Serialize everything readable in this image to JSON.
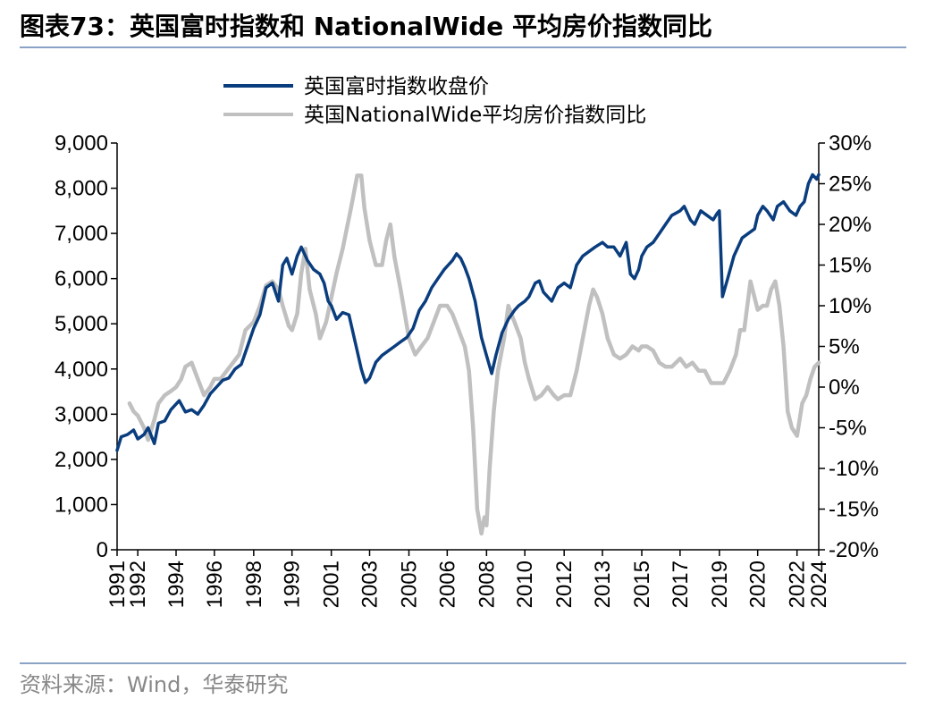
{
  "header": {
    "figure_label": "图表73：",
    "title": "英国富时指数和 NationalWide 平均房价指数同比"
  },
  "footer": {
    "source": "资料来源：Wind，华泰研究"
  },
  "colors": {
    "ftse": "#0a3d7e",
    "nationwide": "#c0c0c0",
    "rule": "#8aa3c4",
    "source_text": "#888888"
  },
  "chart_data": {
    "type": "line",
    "title": "英国富时指数和 NationalWide 平均房价指数同比",
    "x_tick_labels": [
      "1991",
      "1992",
      "1994",
      "1996",
      "1998",
      "1999",
      "2001",
      "2003",
      "2005",
      "2006",
      "2008",
      "2010",
      "2012",
      "2013",
      "2015",
      "2017",
      "2019",
      "2020",
      "2022",
      "2024"
    ],
    "x_tick_dates": [
      1991.0,
      1992.0,
      1993.85,
      1995.7,
      1997.6,
      1999.45,
      2001.35,
      2003.2,
      2005.1,
      2006.95,
      2008.85,
      2010.7,
      2012.6,
      2014.45,
      2016.35,
      2018.2,
      2020.1,
      2021.95,
      2023.85,
      2024.9
    ],
    "x_range": [
      1991.0,
      2024.9
    ],
    "y_left": {
      "label": "英国富时指数收盘价",
      "range": [
        0,
        9000
      ],
      "ticks": [
        "0",
        "1,000",
        "2,000",
        "3,000",
        "4,000",
        "5,000",
        "6,000",
        "7,000",
        "8,000",
        "9,000"
      ],
      "tick_values": [
        0,
        1000,
        2000,
        3000,
        4000,
        5000,
        6000,
        7000,
        8000,
        9000
      ]
    },
    "y_right": {
      "label": "英国NationalWide平均房价指数同比",
      "range": [
        -20,
        30
      ],
      "ticks": [
        "-20%",
        "-15%",
        "-10%",
        "-5%",
        "0%",
        "5%",
        "10%",
        "15%",
        "20%",
        "25%",
        "30%"
      ],
      "tick_values": [
        -20,
        -15,
        -10,
        -5,
        0,
        5,
        10,
        15,
        20,
        25,
        30
      ]
    },
    "legend": {
      "position": "top-center",
      "entries": [
        "英国富时指数收盘价",
        "英国NationalWide平均房价指数同比"
      ]
    },
    "series": [
      {
        "name": "英国富时指数收盘价",
        "axis": "left",
        "color": "#0a3d7e",
        "x": [
          1991.0,
          1991.2,
          1991.5,
          1991.8,
          1992.0,
          1992.3,
          1992.5,
          1992.8,
          1993.0,
          1993.3,
          1993.6,
          1994.0,
          1994.3,
          1994.6,
          1994.9,
          1995.2,
          1995.5,
          1995.8,
          1996.1,
          1996.4,
          1996.7,
          1997.0,
          1997.3,
          1997.6,
          1997.9,
          1998.2,
          1998.5,
          1998.8,
          1999.0,
          1999.2,
          1999.45,
          1999.7,
          1999.9,
          2000.2,
          2000.5,
          2000.8,
          2001.0,
          2001.2,
          2001.35,
          2001.6,
          2001.9,
          2002.2,
          2002.5,
          2002.8,
          2003.0,
          2003.2,
          2003.5,
          2003.8,
          2004.1,
          2004.4,
          2004.7,
          2005.0,
          2005.3,
          2005.6,
          2005.9,
          2006.2,
          2006.5,
          2006.8,
          2007.0,
          2007.2,
          2007.4,
          2007.6,
          2007.8,
          2008.0,
          2008.3,
          2008.6,
          2008.85,
          2009.1,
          2009.3,
          2009.6,
          2009.9,
          2010.2,
          2010.4,
          2010.7,
          2010.9,
          2011.2,
          2011.4,
          2011.6,
          2011.8,
          2012.0,
          2012.3,
          2012.6,
          2012.9,
          2013.2,
          2013.5,
          2013.8,
          2014.1,
          2014.45,
          2014.7,
          2015.0,
          2015.3,
          2015.6,
          2015.8,
          2016.0,
          2016.2,
          2016.35,
          2016.6,
          2016.9,
          2017.2,
          2017.5,
          2017.8,
          2018.0,
          2018.2,
          2018.4,
          2018.7,
          2018.9,
          2019.2,
          2019.5,
          2019.8,
          2020.0,
          2020.1,
          2020.25,
          2020.5,
          2020.8,
          2021.0,
          2021.2,
          2021.5,
          2021.8,
          2021.95,
          2022.2,
          2022.4,
          2022.7,
          2022.9,
          2023.2,
          2023.5,
          2023.8,
          2024.0,
          2024.2,
          2024.4,
          2024.6,
          2024.8,
          2024.9
        ],
        "y": [
          2200,
          2500,
          2550,
          2650,
          2450,
          2550,
          2700,
          2350,
          2800,
          2850,
          3100,
          3300,
          3050,
          3100,
          3000,
          3200,
          3450,
          3600,
          3750,
          3800,
          4000,
          4100,
          4500,
          4900,
          5200,
          5800,
          5900,
          5500,
          6300,
          6450,
          6100,
          6500,
          6700,
          6400,
          6200,
          6100,
          5900,
          5500,
          5400,
          5100,
          5250,
          5200,
          4600,
          4000,
          3700,
          3800,
          4150,
          4300,
          4400,
          4500,
          4600,
          4700,
          4900,
          5300,
          5500,
          5800,
          6000,
          6200,
          6300,
          6400,
          6550,
          6450,
          6250,
          6000,
          5500,
          4700,
          4300,
          3900,
          4300,
          4800,
          5100,
          5300,
          5400,
          5500,
          5600,
          5900,
          5950,
          5700,
          5600,
          5500,
          5800,
          5900,
          5800,
          6300,
          6500,
          6600,
          6700,
          6800,
          6700,
          6700,
          6500,
          6800,
          6100,
          6000,
          6200,
          6500,
          6700,
          6800,
          7000,
          7200,
          7400,
          7450,
          7500,
          7600,
          7300,
          7200,
          7500,
          7400,
          7300,
          7450,
          7500,
          5600,
          6000,
          6500,
          6700,
          6900,
          7000,
          7100,
          7400,
          7600,
          7500,
          7300,
          7600,
          7700,
          7500,
          7400,
          7600,
          7700,
          8100,
          8300,
          8200,
          8300
        ]
      },
      {
        "name": "英国NationalWide平均房价指数同比",
        "axis": "right",
        "color": "#c0c0c0",
        "x": [
          1991.6,
          1991.8,
          1992.0,
          1992.3,
          1992.5,
          1992.8,
          1993.0,
          1993.3,
          1993.6,
          1993.85,
          1994.1,
          1994.3,
          1994.6,
          1994.9,
          1995.2,
          1995.5,
          1995.7,
          1996.0,
          1996.3,
          1996.6,
          1996.9,
          1997.2,
          1997.6,
          1997.9,
          1998.2,
          1998.5,
          1998.8,
          1999.0,
          1999.3,
          1999.45,
          1999.7,
          1999.9,
          2000.1,
          2000.3,
          2000.6,
          2000.8,
          2001.1,
          2001.35,
          2001.6,
          2001.9,
          2002.1,
          2002.3,
          2002.6,
          2002.8,
          2002.95,
          2003.2,
          2003.5,
          2003.8,
          2004.0,
          2004.2,
          2004.4,
          2004.7,
          2004.9,
          2005.1,
          2005.4,
          2005.7,
          2006.0,
          2006.3,
          2006.6,
          2006.95,
          2007.2,
          2007.5,
          2007.8,
          2008.0,
          2008.2,
          2008.4,
          2008.6,
          2008.75,
          2008.85,
          2009.0,
          2009.2,
          2009.4,
          2009.7,
          2009.9,
          2010.2,
          2010.5,
          2010.7,
          2010.9,
          2011.2,
          2011.5,
          2011.8,
          2012.1,
          2012.3,
          2012.6,
          2012.9,
          2013.2,
          2013.5,
          2013.8,
          2014.0,
          2014.2,
          2014.45,
          2014.7,
          2015.0,
          2015.3,
          2015.6,
          2015.9,
          2016.2,
          2016.35,
          2016.6,
          2016.9,
          2017.2,
          2017.5,
          2017.8,
          2018.2,
          2018.5,
          2018.8,
          2019.1,
          2019.4,
          2019.7,
          2020.1,
          2020.3,
          2020.6,
          2020.9,
          2021.1,
          2021.3,
          2021.6,
          2021.95,
          2022.2,
          2022.4,
          2022.6,
          2022.8,
          2023.0,
          2023.2,
          2023.4,
          2023.6,
          2023.85,
          2024.1,
          2024.3,
          2024.5,
          2024.7,
          2024.9
        ],
        "y": [
          -2,
          -3,
          -3.5,
          -5,
          -6.5,
          -4,
          -2,
          -1,
          -0.5,
          0,
          1,
          2.5,
          3,
          1,
          -1,
          0,
          1,
          1,
          2,
          3,
          4,
          7,
          8,
          10,
          12.5,
          13,
          12,
          10,
          7.5,
          7,
          9,
          14,
          17,
          12,
          9,
          6,
          8,
          11,
          14,
          17,
          19.5,
          22,
          26,
          26,
          22,
          18,
          15,
          15,
          18,
          20,
          16,
          12,
          9,
          6,
          4,
          5,
          6,
          8,
          10,
          10,
          9,
          7,
          5,
          2,
          -5,
          -15,
          -18,
          -16,
          -17,
          -10,
          -3,
          2,
          6,
          10,
          8,
          6,
          3,
          1,
          -1.5,
          -1,
          0,
          -1,
          -1.5,
          -1,
          -1,
          2,
          6,
          10,
          12,
          11,
          9,
          6,
          4,
          3.5,
          4,
          5,
          4.5,
          5,
          5,
          4.5,
          3,
          2.5,
          2.5,
          3.5,
          2.5,
          3,
          2,
          2,
          0.5,
          0.5,
          0.5,
          2,
          4,
          7,
          7,
          13,
          9.5,
          10,
          10,
          12,
          13,
          10,
          5,
          -3,
          -5,
          -6,
          -2,
          -1,
          1,
          2.5,
          3
        ]
      }
    ]
  }
}
